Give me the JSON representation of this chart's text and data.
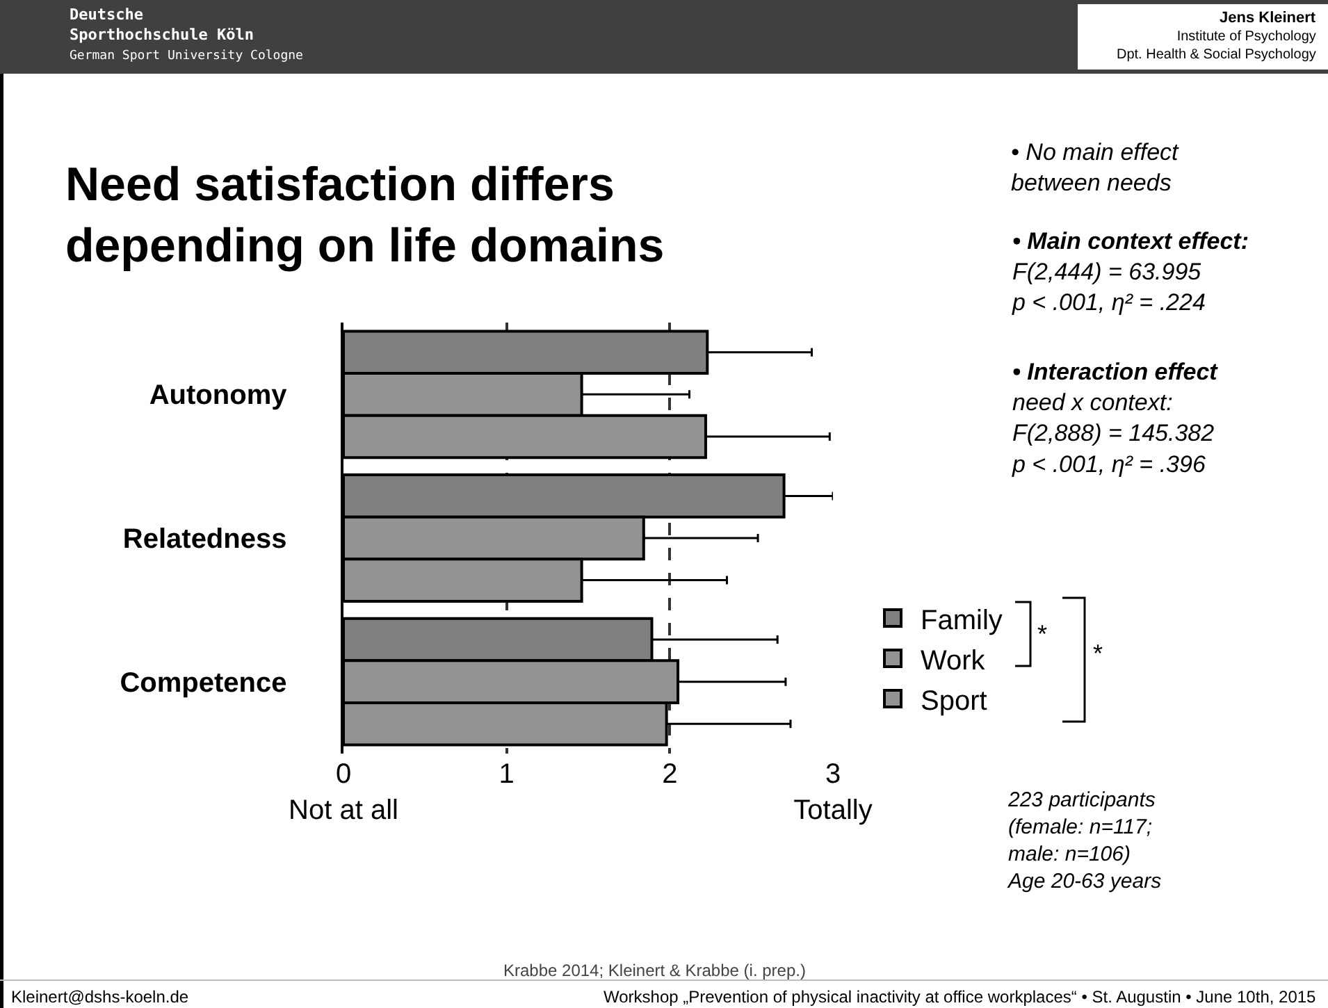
{
  "chart_data": {
    "type": "bar",
    "orientation": "horizontal",
    "title": "Need satisfaction differs\ndepending on life domains",
    "categories": [
      "Autonomy",
      "Relatedness",
      "Competence"
    ],
    "series": [
      {
        "name": "Family",
        "color": "#808080",
        "values": [
          2.23,
          2.7,
          1.89
        ],
        "errors": [
          [
            2.23,
            2.87
          ],
          [
            2.7,
            3.0
          ],
          [
            1.89,
            2.66
          ]
        ]
      },
      {
        "name": "Work",
        "color": "#939393",
        "values": [
          1.46,
          1.84,
          2.05
        ],
        "errors": [
          [
            1.46,
            2.12
          ],
          [
            1.84,
            2.54
          ],
          [
            2.05,
            2.71
          ]
        ]
      },
      {
        "name": "Sport",
        "color": "#939393",
        "values": [
          2.22,
          1.46,
          1.98
        ],
        "errors": [
          [
            2.22,
            2.98
          ],
          [
            1.46,
            2.35
          ],
          [
            1.98,
            2.74
          ]
        ]
      }
    ],
    "xlim": [
      0,
      3
    ],
    "xticks": [
      {
        "value": 0,
        "label": "0\nNot at all"
      },
      1,
      2,
      {
        "value": 3,
        "label": "3\nTotally"
      }
    ],
    "grid": "x",
    "legend": "right",
    "annotations": [
      "Deutsche\nSporthochschule Köln\nGerman Sport University Cologne",
      "Jens Kleinert",
      "Institute of Psychology\nDpt. Health & Social Psychology",
      "• No main effect\nbetween needs",
      "• Main context effect:\nF(2,444) = 63.995\np < .001, η² = .224",
      "• Interaction effect\nneed x context:\nF(2,888) = 145.382\np < .001, η² = .396",
      "*",
      "*",
      "223 participants\n(female: n=117;\nmale: n=106)\nAge 20-63 years",
      "Krabbe 2014; Kleinert & Krabbe (i. prep.)",
      "Kleinert@dshs-koeln.de",
      "Workshop „Prevention of physical inactivity at office workplaces“ • St. Augustin • June 10th, 2015"
    ]
  }
}
